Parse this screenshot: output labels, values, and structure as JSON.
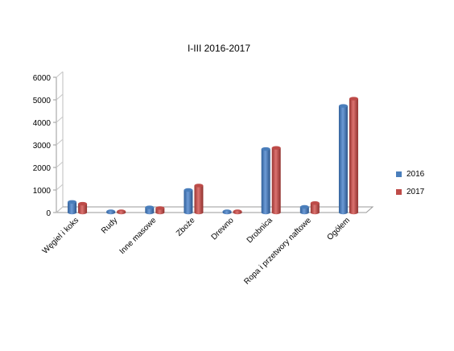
{
  "chart_data": {
    "type": "bar",
    "title": "I-III 2016-2017",
    "xlabel": "",
    "ylabel": "",
    "ylim": [
      0,
      6000
    ],
    "yticks": [
      0,
      1000,
      2000,
      3000,
      4000,
      5000,
      6000
    ],
    "categories": [
      "Węgiel i koks",
      "Rudy",
      "Inne masowe",
      "Zboże",
      "Drewno",
      "Drobnica",
      "Ropa i przetwory naftowe",
      "Ogółem"
    ],
    "series": [
      {
        "name": "2016",
        "color": "#4a7ebb",
        "values": [
          470,
          20,
          230,
          1000,
          30,
          2820,
          250,
          4730
        ]
      },
      {
        "name": "2017",
        "color": "#be4b48",
        "values": [
          390,
          20,
          200,
          1200,
          40,
          2870,
          420,
          5050
        ]
      }
    ],
    "legend_position": "right",
    "grid": false
  }
}
